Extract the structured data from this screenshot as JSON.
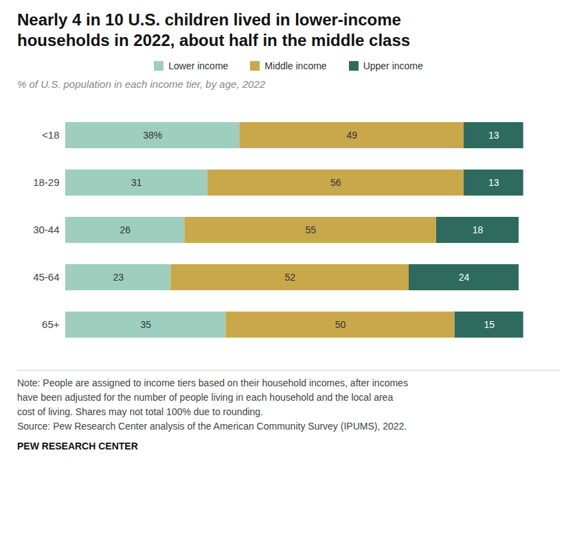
{
  "chart_data": {
    "type": "bar",
    "orientation": "horizontal",
    "stacked": true,
    "title": "Nearly 4 in 10 U.S. children lived in lower-income\nhouseholds in 2022, about half in the middle class",
    "subtitle": "% of U.S. population in each income tier, by age, 2022",
    "categories": [
      "<18",
      "18-29",
      "30-44",
      "45-64",
      "65+"
    ],
    "series": [
      {
        "name": "Lower income",
        "color": "#9ecfbe",
        "values": [
          38,
          31,
          26,
          23,
          35
        ],
        "value_labels": [
          "38%",
          "31",
          "26",
          "23",
          "35"
        ]
      },
      {
        "name": "Middle income",
        "color": "#c9a84c",
        "values": [
          49,
          56,
          55,
          52,
          50
        ]
      },
      {
        "name": "Upper income",
        "color": "#2e6b5e",
        "values": [
          13,
          13,
          18,
          24,
          15
        ]
      }
    ],
    "xlim": [
      0,
      105
    ],
    "data_labels": true,
    "tick_labels": "y",
    "legend": "top",
    "grid": false,
    "notes": [
      "Note: People are assigned to income tiers based on their household incomes, after incomes",
      "have been adjusted for the number of people living in each household and the local area",
      "cost of living. Shares may not total 100% due to rounding.",
      "Source: Pew Research Center analysis of the American Community Survey (IPUMS), 2022."
    ],
    "source": "PEW RESEARCH CENTER"
  }
}
